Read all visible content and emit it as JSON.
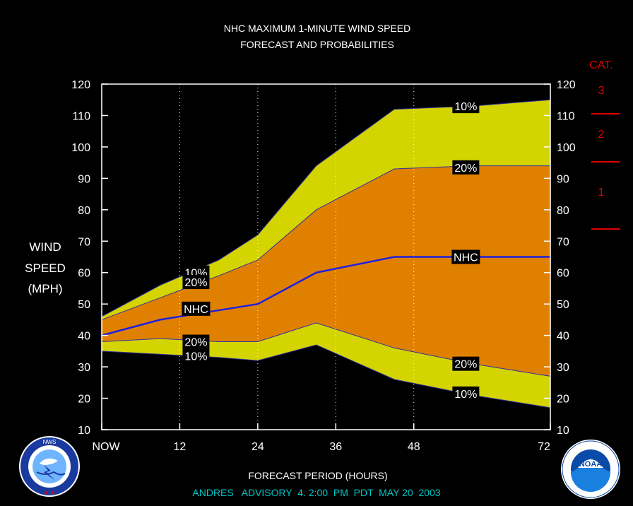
{
  "title_line1": "NHC MAXIMUM 1-MINUTE WIND SPEED",
  "title_line2": "FORECAST AND PROBABILITIES",
  "ylabel": [
    "WIND",
    "SPEED",
    "(MPH)"
  ],
  "xlabel": "FORECAST PERIOD (HOURS)",
  "advisory": "ANDRES   ADVISORY  4. 2:00  PM  PDT  MAY 20  2003",
  "cat_title": "CAT.",
  "categories": [
    {
      "label": "3",
      "threshold": 111
    },
    {
      "label": "2",
      "threshold": 96
    },
    {
      "label": "1",
      "threshold": 74
    }
  ],
  "colors": {
    "background": "#000000",
    "band_outer": "#d4d400",
    "band_inner": "#e08000",
    "nhc_line": "#2020e0",
    "category": "#e00000",
    "advisory_text": "#00c8c8",
    "text": "#ffffff"
  },
  "logos": {
    "left": {
      "name": "nws-logo",
      "text": "NATIONAL WEATHER SERVICE"
    },
    "right": {
      "name": "noaa-logo",
      "text": "NOAA"
    }
  },
  "chart_data": {
    "type": "area",
    "x_ticks": [
      {
        "x": 0,
        "label": "NOW"
      },
      {
        "x": 12,
        "label": "12"
      },
      {
        "x": 24,
        "label": "24"
      },
      {
        "x": 36,
        "label": "36"
      },
      {
        "x": 48,
        "label": "48"
      },
      {
        "x": 72,
        "label": "72"
      }
    ],
    "xlim": [
      0,
      69
    ],
    "ylim": [
      10,
      120
    ],
    "y_ticks": [
      10,
      20,
      30,
      40,
      50,
      60,
      70,
      80,
      90,
      100,
      110,
      120
    ],
    "vertical_dotted_grid": [
      12,
      24,
      36,
      48
    ],
    "x": [
      0,
      9,
      18,
      24,
      33,
      45,
      57,
      69
    ],
    "series": [
      {
        "name": "10%",
        "side": "upper",
        "values": [
          46,
          56,
          64,
          72,
          94,
          112,
          113,
          115
        ]
      },
      {
        "name": "20%",
        "side": "upper",
        "values": [
          45,
          52,
          59,
          64,
          80,
          93,
          94,
          94
        ]
      },
      {
        "name": "NHC",
        "values": [
          40,
          45,
          48,
          50,
          60,
          65,
          65,
          65
        ]
      },
      {
        "name": "20%",
        "side": "lower",
        "values": [
          38,
          39,
          38,
          38,
          44,
          36,
          31,
          27
        ]
      },
      {
        "name": "10%",
        "side": "lower",
        "values": [
          35,
          34,
          33,
          32,
          37,
          26,
          21,
          17
        ]
      }
    ],
    "labels": [
      {
        "text": "10%",
        "x": 14.5,
        "y": 60
      },
      {
        "text": "20%",
        "x": 14.5,
        "y": 57
      },
      {
        "text": "NHC",
        "x": 14.5,
        "y": 48.5
      },
      {
        "text": "20%",
        "x": 14.5,
        "y": 38
      },
      {
        "text": "10%",
        "x": 14.5,
        "y": 33.5
      },
      {
        "text": "10%",
        "x": 56,
        "y": 113
      },
      {
        "text": "20%",
        "x": 56,
        "y": 93.5
      },
      {
        "text": "NHC",
        "x": 56,
        "y": 65
      },
      {
        "text": "20%",
        "x": 56,
        "y": 31
      },
      {
        "text": "10%",
        "x": 56,
        "y": 21.5
      }
    ]
  }
}
